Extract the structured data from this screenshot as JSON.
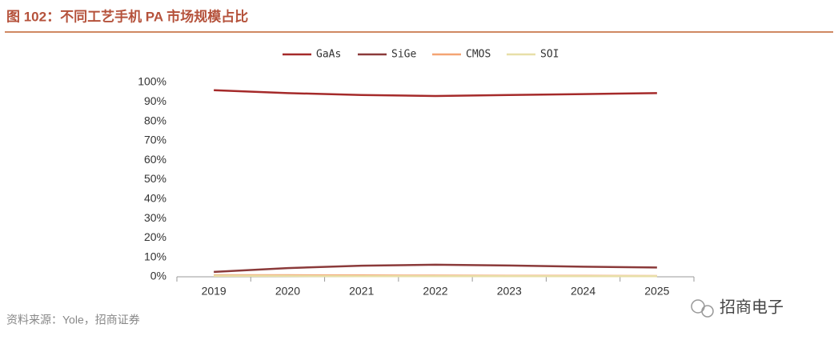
{
  "chart_data": {
    "type": "line",
    "title": "图 102：不同工艺手机 PA 市场规模占比",
    "source": "资料来源：Yole，招商证券",
    "watermark": "招商电子",
    "categories": [
      "2019",
      "2020",
      "2021",
      "2022",
      "2023",
      "2024",
      "2025"
    ],
    "series": [
      {
        "name": "GaAs",
        "color": "#a52a2a",
        "values": [
          96,
          94.5,
          93.5,
          93,
          93.5,
          94,
          94.5
        ]
      },
      {
        "name": "SiGe",
        "color": "#8b3a3a",
        "values": [
          2.5,
          4.5,
          5.7,
          6.2,
          5.8,
          5.2,
          4.8
        ]
      },
      {
        "name": "CMOS",
        "color": "#f4a474",
        "values": [
          0.8,
          0.8,
          0.7,
          0.6,
          0.5,
          0.5,
          0.4
        ]
      },
      {
        "name": "SOI",
        "color": "#e8dfa8",
        "values": [
          0.5,
          0.4,
          0.3,
          0.3,
          0.3,
          0.3,
          0.3
        ]
      }
    ],
    "ylim": [
      0,
      100
    ],
    "yticks": [
      {
        "value": 0,
        "label": "0%"
      },
      {
        "value": 10,
        "label": "10%"
      },
      {
        "value": 20,
        "label": "20%"
      },
      {
        "value": 30,
        "label": "30%"
      },
      {
        "value": 40,
        "label": "40%"
      },
      {
        "value": 50,
        "label": "50%"
      },
      {
        "value": 60,
        "label": "60%"
      },
      {
        "value": 70,
        "label": "70%"
      },
      {
        "value": 80,
        "label": "80%"
      },
      {
        "value": 90,
        "label": "90%"
      },
      {
        "value": 100,
        "label": "100%"
      }
    ],
    "legend": "top"
  }
}
